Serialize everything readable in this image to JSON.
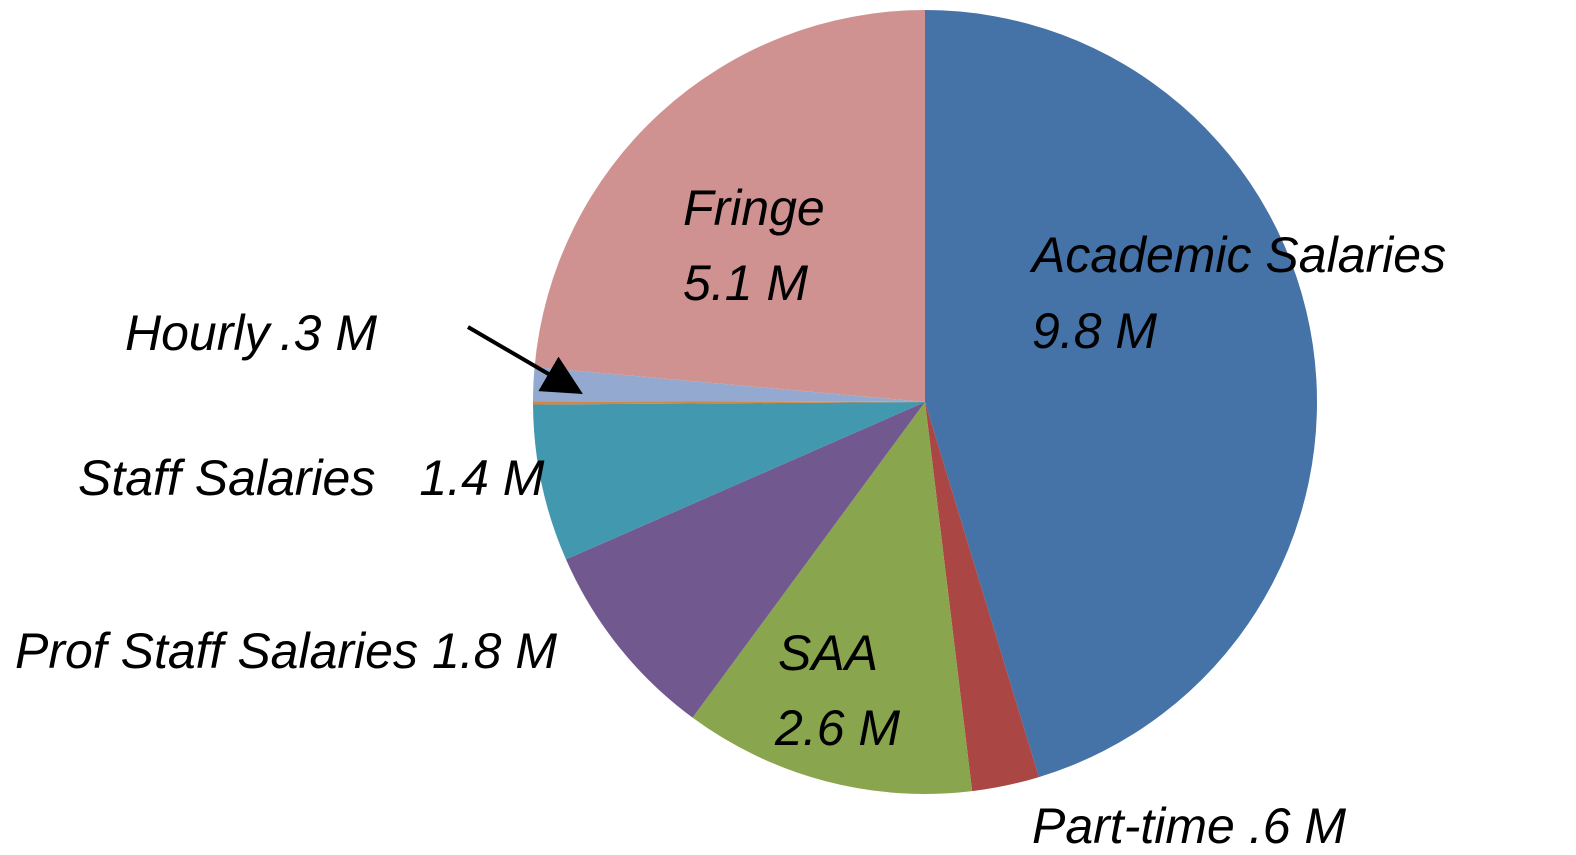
{
  "chart_data": {
    "type": "pie",
    "categories": [
      "Academic Salaries",
      "Part-time",
      "SAA",
      "Prof Staff Salaries",
      "Staff Salaries",
      null,
      "Hourly",
      "Fringe"
    ],
    "values": [
      9.8,
      0.6,
      2.6,
      1.8,
      1.4,
      0.03,
      0.3,
      5.1
    ],
    "value_labels": [
      "9.8 M",
      ".6 M",
      "2.6 M",
      "1.8 M",
      "1.4 M",
      null,
      ".3 M",
      "5.1 M"
    ],
    "colors": [
      "#4572a7",
      "#aa4643",
      "#89a54e",
      "#71588f",
      "#4198af",
      "#db843d",
      "#93a9cf",
      "#d09291"
    ]
  }
}
